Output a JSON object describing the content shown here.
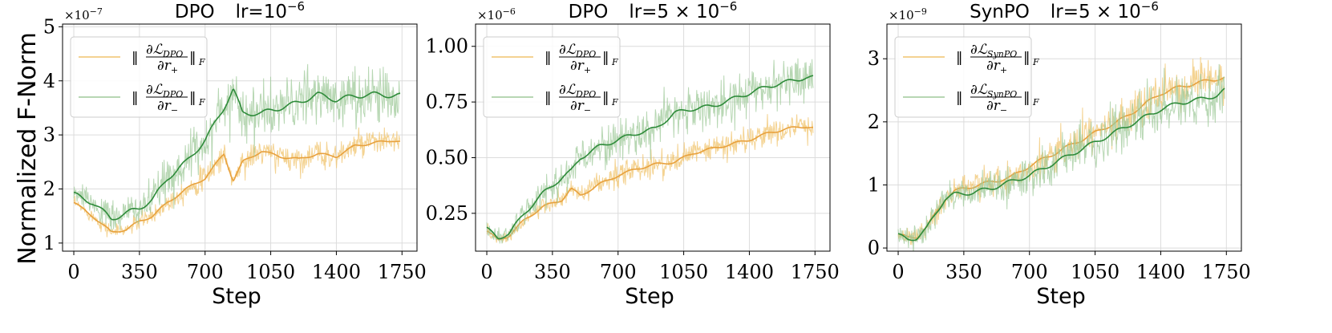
{
  "figure": {
    "ylabel": "Normalized F-Norm"
  },
  "colors": {
    "plus_raw": "#f0c46e",
    "plus_smooth": "#e8a13d",
    "minus_raw": "#9fc99a",
    "minus_smooth": "#2e8b3a",
    "grid": "#dcdcdc"
  },
  "chart_data": [
    {
      "type": "line",
      "title_left": "DPO",
      "title_right": "lr=10",
      "title_right_exp": "−6",
      "xlabel": "Step",
      "ylabel": "Normalized F-Norm",
      "exponent_label": "×10",
      "exponent_power": "−7",
      "xlim": [
        -60,
        1830
      ],
      "ylim": [
        0.85,
        5.05
      ],
      "xticks": [
        0,
        350,
        700,
        1050,
        1400,
        1750
      ],
      "xtick_labels": [
        "0",
        "350",
        "700",
        "1050",
        "1400",
        "1750"
      ],
      "yticks": [
        1,
        2,
        3,
        4,
        5
      ],
      "ytick_labels": [
        "1",
        "2",
        "3",
        "4",
        "5"
      ],
      "noise": [
        0.12,
        0.25
      ],
      "legend": {
        "placement": "upper-left",
        "entries": [
          {
            "numer": "∂ℒ",
            "sub": "DPO",
            "denom": "∂r",
            "denom_sub": "+",
            "suffix": "F"
          },
          {
            "numer": "∂ℒ",
            "sub": "DPO",
            "denom": "∂r",
            "denom_sub": "−",
            "suffix": "F"
          }
        ]
      },
      "series": [
        {
          "name": "‖∂L_DPO/∂r+‖_F",
          "color_raw": "#f0c46e",
          "color_smooth": "#e8a13d",
          "x": [
            0,
            100,
            200,
            280,
            350,
            420,
            500,
            600,
            700,
            800,
            850,
            900,
            1000,
            1100,
            1200,
            1300,
            1400,
            1500,
            1600,
            1700,
            1740
          ],
          "y": [
            1.75,
            1.5,
            1.2,
            1.25,
            1.4,
            1.5,
            1.75,
            2.0,
            2.2,
            2.65,
            2.15,
            2.5,
            2.7,
            2.6,
            2.55,
            2.65,
            2.6,
            2.8,
            2.85,
            2.9,
            2.88
          ]
        },
        {
          "name": "‖∂L_DPO/∂r−‖_F",
          "color_raw": "#9fc99a",
          "color_smooth": "#2e8b3a",
          "x": [
            0,
            100,
            200,
            280,
            350,
            420,
            500,
            600,
            700,
            800,
            850,
            900,
            1000,
            1100,
            1200,
            1300,
            1400,
            1500,
            1600,
            1700,
            1740
          ],
          "y": [
            1.9,
            1.75,
            1.45,
            1.55,
            1.65,
            1.8,
            2.2,
            2.5,
            2.9,
            3.5,
            3.85,
            3.4,
            3.4,
            3.5,
            3.6,
            3.75,
            3.65,
            3.72,
            3.75,
            3.73,
            3.73
          ]
        }
      ]
    },
    {
      "type": "line",
      "title_left": "DPO",
      "title_right": "lr=5 × 10",
      "title_right_exp": "−6",
      "xlabel": "Step",
      "ylabel": "",
      "exponent_label": "×10",
      "exponent_power": "−6",
      "xlim": [
        -60,
        1830
      ],
      "ylim": [
        0.08,
        1.1
      ],
      "xticks": [
        0,
        350,
        700,
        1050,
        1400,
        1750
      ],
      "xtick_labels": [
        "0",
        "350",
        "700",
        "1050",
        "1400",
        "1750"
      ],
      "yticks": [
        0.25,
        0.5,
        0.75,
        1.0
      ],
      "ytick_labels": [
        "0.25",
        "0.50",
        "0.75",
        "1.00"
      ],
      "noise": [
        0.03,
        0.05
      ],
      "legend": {
        "placement": "upper-left",
        "entries": [
          {
            "numer": "∂ℒ",
            "sub": "DPO",
            "denom": "∂r",
            "denom_sub": "+",
            "suffix": "F"
          },
          {
            "numer": "∂ℒ",
            "sub": "DPO",
            "denom": "∂r",
            "denom_sub": "−",
            "suffix": "F"
          }
        ]
      },
      "series": [
        {
          "name": "‖∂L_DPO/∂r+‖_F",
          "color_raw": "#f0c46e",
          "color_smooth": "#e8a13d",
          "x": [
            0,
            60,
            120,
            200,
            300,
            400,
            450,
            500,
            600,
            700,
            800,
            900,
            1000,
            1100,
            1200,
            1300,
            1400,
            1500,
            1600,
            1700,
            1740
          ],
          "y": [
            0.17,
            0.13,
            0.15,
            0.22,
            0.28,
            0.31,
            0.36,
            0.33,
            0.38,
            0.42,
            0.45,
            0.47,
            0.48,
            0.52,
            0.54,
            0.56,
            0.58,
            0.61,
            0.63,
            0.64,
            0.635
          ]
        },
        {
          "name": "‖∂L_DPO/∂r−‖_F",
          "color_raw": "#9fc99a",
          "color_smooth": "#2e8b3a",
          "x": [
            0,
            60,
            120,
            200,
            300,
            400,
            450,
            500,
            600,
            700,
            800,
            900,
            1000,
            1100,
            1200,
            1300,
            1400,
            1500,
            1600,
            1700,
            1740
          ],
          "y": [
            0.18,
            0.14,
            0.16,
            0.25,
            0.34,
            0.41,
            0.44,
            0.5,
            0.55,
            0.58,
            0.61,
            0.63,
            0.7,
            0.72,
            0.73,
            0.76,
            0.79,
            0.82,
            0.84,
            0.86,
            0.86
          ]
        }
      ]
    },
    {
      "type": "line",
      "title_left": "SynPO",
      "title_right": "lr=5 × 10",
      "title_right_exp": "−6",
      "xlabel": "Step",
      "ylabel": "",
      "exponent_label": "×10",
      "exponent_power": "−9",
      "xlim": [
        -60,
        1830
      ],
      "ylim": [
        -0.05,
        3.55
      ],
      "xticks": [
        0,
        350,
        700,
        1050,
        1400,
        1750
      ],
      "xtick_labels": [
        "0",
        "350",
        "700",
        "1050",
        "1400",
        "1750"
      ],
      "yticks": [
        0,
        1,
        2,
        3
      ],
      "ytick_labels": [
        "0",
        "1",
        "2",
        "3"
      ],
      "noise": [
        0.15,
        0.18
      ],
      "legend": {
        "placement": "upper-left",
        "entries": [
          {
            "numer": "∂ℒ",
            "sub": "SynPO",
            "denom": "∂r",
            "denom_sub": "+",
            "suffix": "F"
          },
          {
            "numer": "∂ℒ",
            "sub": "SynPO",
            "denom": "∂r",
            "denom_sub": "−",
            "suffix": "F"
          }
        ]
      },
      "series": [
        {
          "name": "‖∂L_SynPO/∂r+‖_F",
          "color_raw": "#f0c46e",
          "color_smooth": "#e8a13d",
          "x": [
            0,
            50,
            100,
            150,
            200,
            250,
            300,
            400,
            500,
            600,
            700,
            800,
            900,
            1000,
            1100,
            1200,
            1300,
            1400,
            1500,
            1600,
            1700,
            1740
          ],
          "y": [
            0.22,
            0.16,
            0.18,
            0.32,
            0.55,
            0.78,
            0.9,
            0.98,
            1.05,
            1.12,
            1.3,
            1.45,
            1.6,
            1.75,
            1.9,
            2.05,
            2.25,
            2.45,
            2.55,
            2.62,
            2.68,
            2.7
          ]
        },
        {
          "name": "‖∂L_SynPO/∂r−‖_F",
          "color_raw": "#9fc99a",
          "color_smooth": "#2e8b3a",
          "x": [
            0,
            50,
            100,
            150,
            200,
            250,
            300,
            400,
            500,
            600,
            700,
            800,
            900,
            1000,
            1100,
            1200,
            1300,
            1400,
            1500,
            1600,
            1700,
            1740
          ],
          "y": [
            0.2,
            0.14,
            0.16,
            0.3,
            0.55,
            0.78,
            0.85,
            0.88,
            0.95,
            1.05,
            1.15,
            1.3,
            1.45,
            1.6,
            1.75,
            1.9,
            2.05,
            2.2,
            2.3,
            2.35,
            2.42,
            2.5
          ]
        }
      ]
    }
  ]
}
